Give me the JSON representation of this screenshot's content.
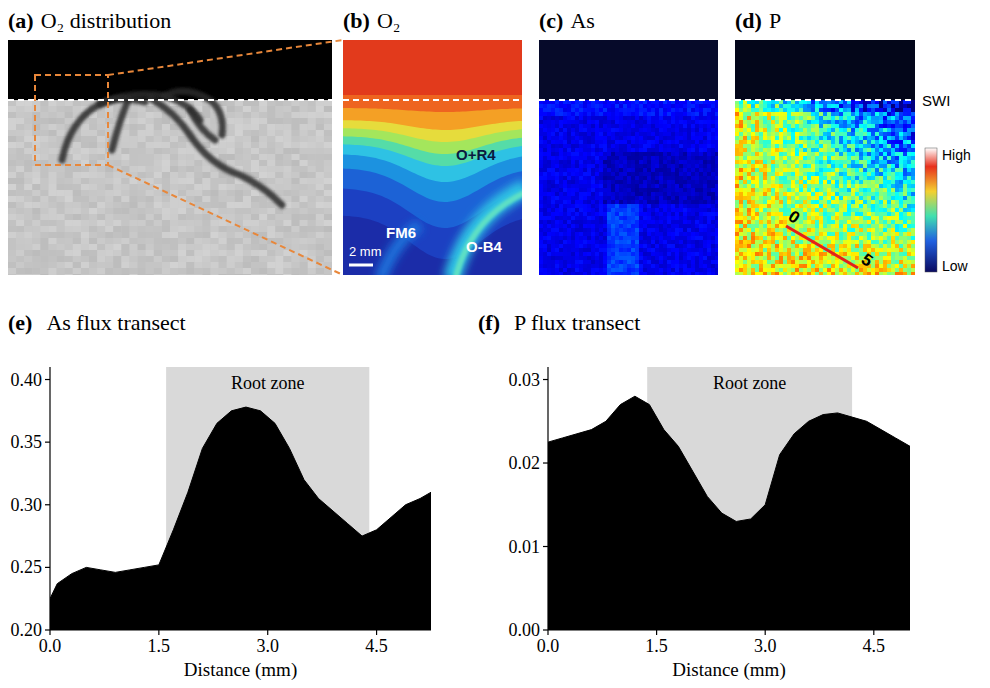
{
  "panels": [
    {
      "letter": "(a)",
      "title": "O₂ distribution"
    },
    {
      "letter": "(b)",
      "title": "O₂",
      "labels": [
        "O+R4",
        "FM6",
        "O-B4"
      ],
      "scale_bar": "2 mm"
    },
    {
      "letter": "(c)",
      "title": "As"
    },
    {
      "letter": "(d)",
      "title": "P",
      "transect_ticks": [
        0,
        5
      ]
    }
  ],
  "interface_label": "SWI",
  "color_scale": {
    "high": "High",
    "low": "Low"
  },
  "chart_data": [
    {
      "type": "area",
      "letter": "(e)",
      "title": "As flux transect",
      "color": "#000000",
      "x": [
        0,
        0.1,
        0.3,
        0.5,
        0.7,
        0.9,
        1.1,
        1.3,
        1.5,
        1.7,
        1.9,
        2.1,
        2.3,
        2.5,
        2.7,
        2.9,
        3.1,
        3.3,
        3.5,
        3.7,
        3.9,
        4.1,
        4.3,
        4.5,
        4.7,
        4.9,
        5.1,
        5.25
      ],
      "values": [
        0.225,
        0.237,
        0.245,
        0.25,
        0.248,
        0.246,
        0.248,
        0.25,
        0.252,
        0.28,
        0.31,
        0.345,
        0.365,
        0.375,
        0.378,
        0.375,
        0.365,
        0.345,
        0.32,
        0.305,
        0.295,
        0.285,
        0.275,
        0.28,
        0.29,
        0.3,
        0.305,
        0.31
      ],
      "xlim": [
        0,
        5.25
      ],
      "xticks": [
        {
          "value": 0,
          "label": "0.0"
        },
        1.5,
        {
          "value": 3,
          "label": "3.0"
        },
        4.5
      ],
      "ylim": [
        0.2,
        0.41
      ],
      "yticks": [
        {
          "value": 0.2,
          "label": "0.20"
        },
        0.25,
        {
          "value": 0.3,
          "label": "0.30"
        },
        0.35,
        {
          "value": 0.4,
          "label": "0.40"
        }
      ],
      "x_label": "Distance (mm)",
      "annotations": [
        {
          "text": "Root zone",
          "x_start": 1.6,
          "x_end": 4.4
        }
      ]
    },
    {
      "type": "area",
      "letter": "(f)",
      "title": "P flux transect",
      "color": "#000000",
      "x": [
        0,
        0.2,
        0.4,
        0.6,
        0.8,
        1.0,
        1.2,
        1.4,
        1.6,
        1.8,
        2.0,
        2.2,
        2.4,
        2.6,
        2.8,
        3.0,
        3.2,
        3.4,
        3.6,
        3.8,
        4.0,
        4.2,
        4.4,
        4.6,
        4.8,
        5.0
      ],
      "values": [
        0.0225,
        0.023,
        0.0235,
        0.024,
        0.025,
        0.027,
        0.028,
        0.027,
        0.024,
        0.022,
        0.019,
        0.016,
        0.014,
        0.013,
        0.0133,
        0.015,
        0.021,
        0.0235,
        0.025,
        0.0258,
        0.026,
        0.0255,
        0.025,
        0.024,
        0.023,
        0.022
      ],
      "xlim": [
        0,
        5.0
      ],
      "xticks": [
        {
          "value": 0,
          "label": "0.0"
        },
        1.5,
        {
          "value": 3,
          "label": "3.0"
        },
        4.5
      ],
      "ylim": [
        0,
        0.0315
      ],
      "yticks": [
        {
          "value": 0,
          "label": "0.00"
        },
        0.01,
        0.02,
        0.03
      ],
      "x_label": "Distance (mm)",
      "annotations": [
        {
          "text": "Root zone",
          "x_start": 1.37,
          "x_end": 4.2
        }
      ]
    }
  ]
}
